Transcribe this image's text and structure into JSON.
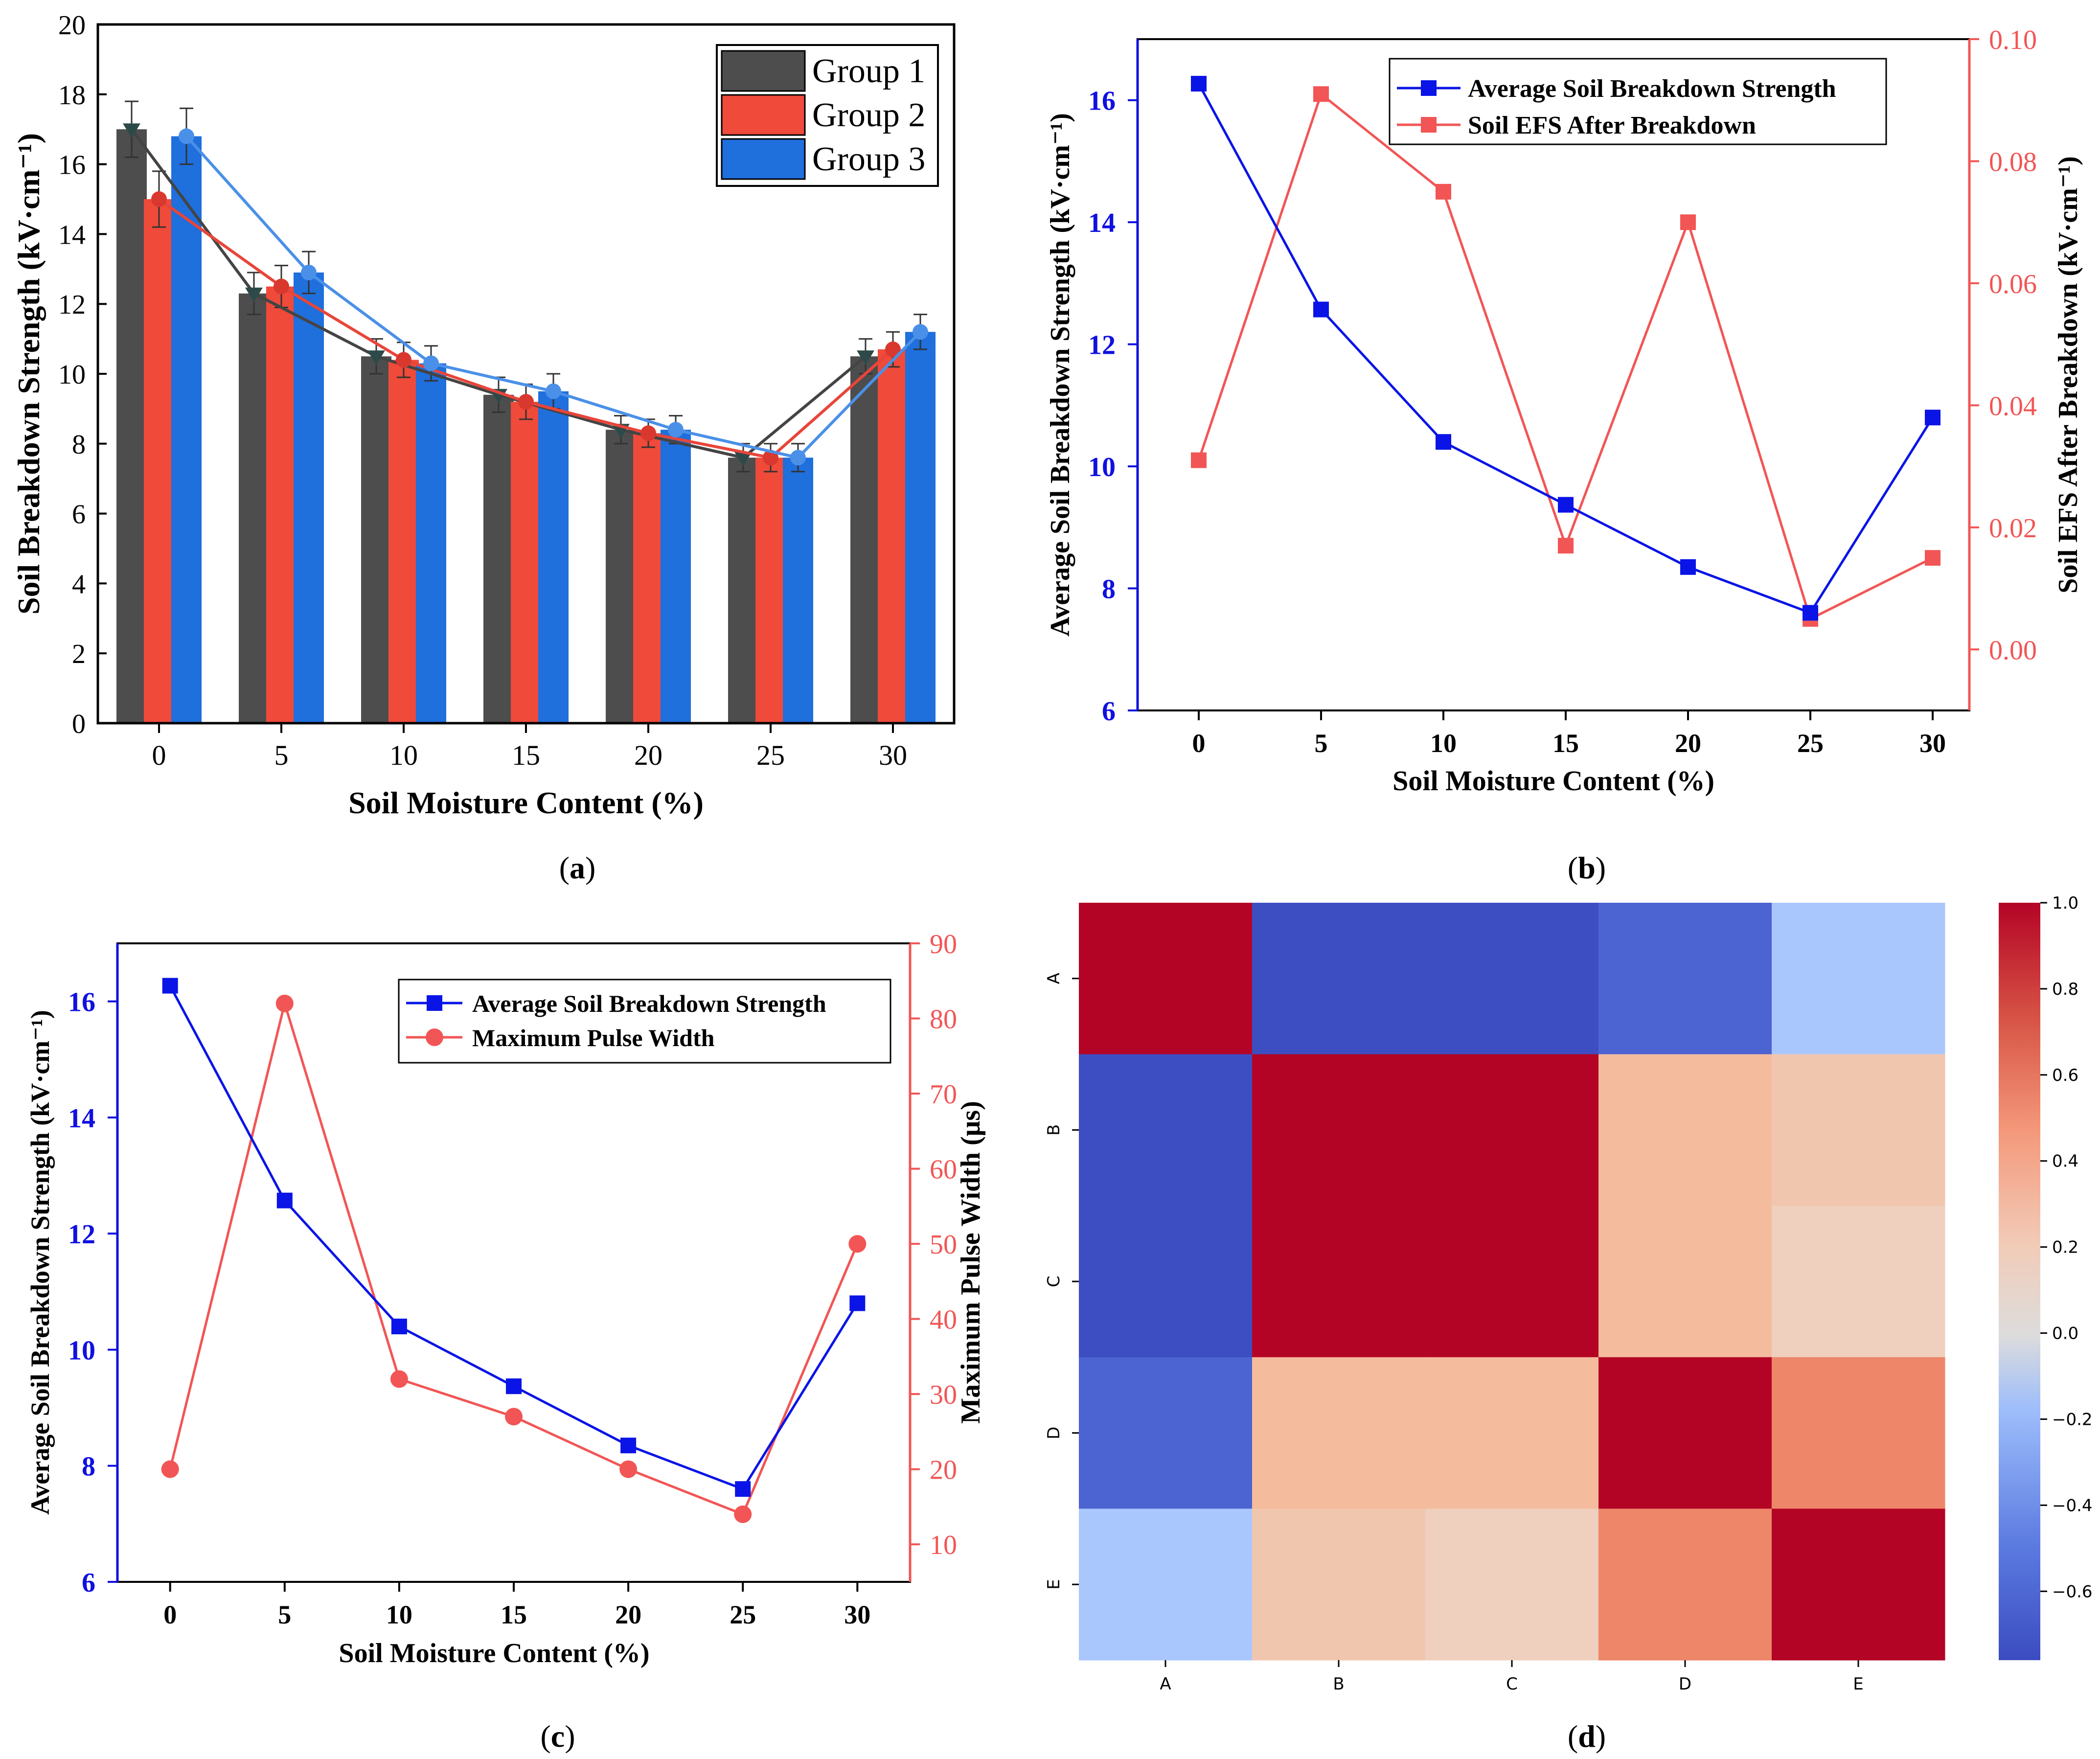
{
  "colors": {
    "group1": "#4d4d4d",
    "group2": "#ef4a3a",
    "group3": "#1f6fdc",
    "blue_line": "#0a14e6",
    "red_line": "#f25555",
    "axis_blue": "#1010e0",
    "axis_red": "#f25555"
  },
  "chart_data": [
    {
      "id": "a",
      "type": "bar",
      "panel_label": "(a)",
      "panel_letter": "a",
      "xlabel": "Soil Moisture Content (%)",
      "ylabel": "Soil Breakdown Strength (kV·cm⁻¹)",
      "ylim": [
        0,
        20
      ],
      "yticks": [
        0,
        2,
        4,
        6,
        8,
        10,
        12,
        14,
        16,
        18,
        20
      ],
      "categories": [
        "0",
        "5",
        "10",
        "15",
        "20",
        "25",
        "30"
      ],
      "legend_position": "top-right",
      "series": [
        {
          "name": "Group 1",
          "values": [
            17.0,
            12.3,
            10.5,
            9.4,
            8.4,
            7.6,
            10.5
          ],
          "errors": [
            0.8,
            0.6,
            0.5,
            0.5,
            0.4,
            0.4,
            0.5
          ]
        },
        {
          "name": "Group 2",
          "values": [
            15.0,
            12.5,
            10.4,
            9.2,
            8.3,
            7.6,
            10.7
          ],
          "errors": [
            0.8,
            0.6,
            0.5,
            0.5,
            0.4,
            0.4,
            0.5
          ]
        },
        {
          "name": "Group 3",
          "values": [
            16.8,
            12.9,
            10.3,
            9.5,
            8.4,
            7.6,
            11.2
          ],
          "errors": [
            0.8,
            0.6,
            0.5,
            0.5,
            0.4,
            0.4,
            0.5
          ]
        }
      ]
    },
    {
      "id": "b",
      "type": "line",
      "panel_label": "(b)",
      "panel_letter": "b",
      "xlabel": "Soil Moisture Content (%)",
      "ylabel_left": "Average Soil Breakdown Strength (kV·cm⁻¹)",
      "ylabel_right": "Soil EFS After Breakdown (kV·cm⁻¹)",
      "x": [
        0,
        5,
        10,
        15,
        20,
        25,
        30
      ],
      "xlim": [
        -2.5,
        31.5
      ],
      "ylim_left": [
        6,
        17
      ],
      "yticks_left": [
        6,
        8,
        10,
        12,
        14,
        16
      ],
      "ylim_right": [
        -0.01,
        0.1
      ],
      "yticks_right": [
        "0.00",
        "0.02",
        "0.04",
        "0.06",
        "0.08",
        "0.10"
      ],
      "legend_position": "top-center",
      "series": [
        {
          "name": "Average Soil Breakdown Strength",
          "axis": "left",
          "values": [
            16.27,
            12.57,
            10.4,
            9.37,
            8.35,
            7.6,
            10.8
          ]
        },
        {
          "name": "Soil EFS After Breakdown",
          "axis": "right",
          "values": [
            0.031,
            0.091,
            0.075,
            0.017,
            0.07,
            0.005,
            0.015
          ]
        }
      ]
    },
    {
      "id": "c",
      "type": "line",
      "panel_label": "(c)",
      "panel_letter": "c",
      "xlabel": "Soil Moisture Content (%)",
      "ylabel_left": "Average Soil Breakdown Strength (kV·cm⁻¹)",
      "ylabel_right": "Maximum Pulse Width (μs)",
      "x": [
        0,
        5,
        10,
        15,
        20,
        25,
        30
      ],
      "xlim": [
        -2.3,
        32.3
      ],
      "ylim_left": [
        6,
        17
      ],
      "yticks_left": [
        6,
        8,
        10,
        12,
        14,
        16
      ],
      "ylim_right": [
        5,
        90
      ],
      "yticks_right": [
        10,
        20,
        30,
        40,
        50,
        60,
        70,
        80,
        90
      ],
      "legend_position": "top-right",
      "series": [
        {
          "name": "Average Soil Breakdown Strength",
          "axis": "left",
          "values": [
            16.27,
            12.57,
            10.4,
            9.37,
            8.35,
            7.6,
            10.8
          ]
        },
        {
          "name": "Maximum Pulse Width",
          "axis": "right",
          "values": [
            20,
            82,
            32,
            27,
            20,
            14,
            50
          ]
        }
      ]
    },
    {
      "id": "d",
      "type": "heatmap",
      "panel_label": "(d)",
      "panel_letter": "d",
      "labels": [
        "A",
        "B",
        "C",
        "D",
        "E"
      ],
      "matrix": [
        [
          1.0,
          -0.75,
          -0.75,
          -0.65,
          -0.2
        ],
        [
          -0.75,
          1.0,
          1.0,
          0.42,
          0.33
        ],
        [
          -0.75,
          1.0,
          1.0,
          0.42,
          0.25
        ],
        [
          -0.65,
          0.42,
          0.42,
          1.0,
          0.62
        ],
        [
          -0.2,
          0.33,
          0.25,
          0.62,
          1.0
        ]
      ],
      "colorbar": {
        "vmin": -0.76,
        "vmax": 1.0,
        "ticks": [
          "1.0",
          "0.8",
          "0.6",
          "0.4",
          "0.2",
          "0.0",
          "−0.2",
          "−0.4",
          "−0.6"
        ]
      }
    }
  ]
}
